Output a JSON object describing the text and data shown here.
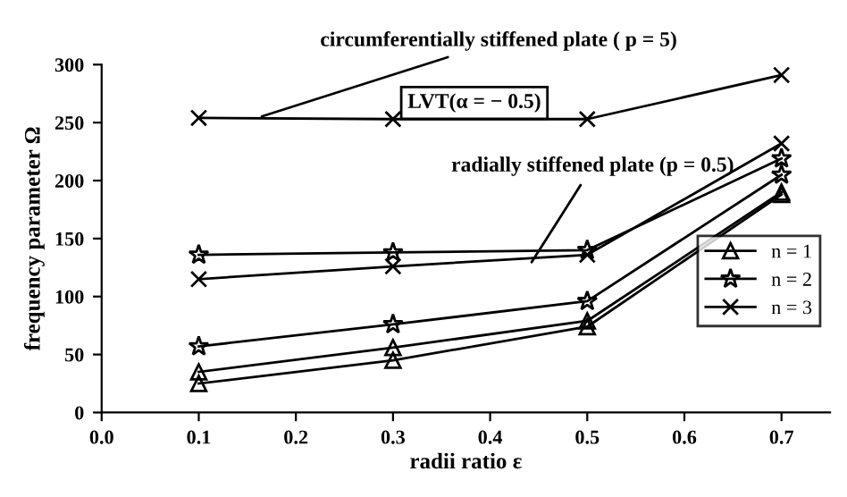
{
  "chart_data": {
    "type": "line",
    "xlabel": "radii ratio ε",
    "ylabel": "frequency parameter Ω",
    "x": [
      0.1,
      0.3,
      0.5,
      0.7
    ],
    "series": [
      {
        "name": "n = 1",
        "color": "#000000",
        "marker": "triangle",
        "values": [
          35,
          56,
          79,
          190
        ]
      },
      {
        "name": "n = 2",
        "color": "#000000",
        "marker": "star",
        "values": [
          136,
          138,
          140,
          219
        ]
      },
      {
        "name": "n = 3",
        "color": "#000000",
        "marker": "cross",
        "values": [
          254,
          253,
          253,
          291
        ]
      },
      {
        "color": "#000000",
        "marker": "triangle",
        "values": [
          25,
          45,
          74,
          188
        ]
      },
      {
        "color": "#000000",
        "marker": "star",
        "values": [
          57,
          76,
          96,
          205
        ]
      },
      {
        "color": "#000000",
        "marker": "cross",
        "values": [
          115,
          126,
          136,
          232
        ]
      }
    ],
    "xlim": [
      0,
      0.75
    ],
    "xticks": [
      {
        "value": 0,
        "label": "0.0"
      },
      {
        "value": 0.1,
        "label": "0.1"
      },
      {
        "value": 0.2,
        "label": "0.2"
      },
      {
        "value": 0.3,
        "label": "0.3"
      },
      {
        "value": 0.4,
        "label": "0.4"
      },
      {
        "value": 0.5,
        "label": "0.5"
      },
      {
        "value": 0.6,
        "label": "0.6"
      },
      {
        "value": 0.7,
        "label": "0.7"
      }
    ],
    "ylim": [
      0,
      300
    ],
    "yticks": [
      0,
      50,
      100,
      150,
      200,
      250,
      300
    ],
    "grid": false,
    "legend": "bottom right",
    "line_style": "solid",
    "annotations": [
      {
        "text": "circumferentially stiffened plate ( p = 5)",
        "x": 0.16,
        "y": 254
      },
      {
        "text": "radially stiffened plate (p = 0.5)",
        "x": 0.44,
        "y": 126
      },
      "LVT(α = − 0.5)"
    ]
  }
}
